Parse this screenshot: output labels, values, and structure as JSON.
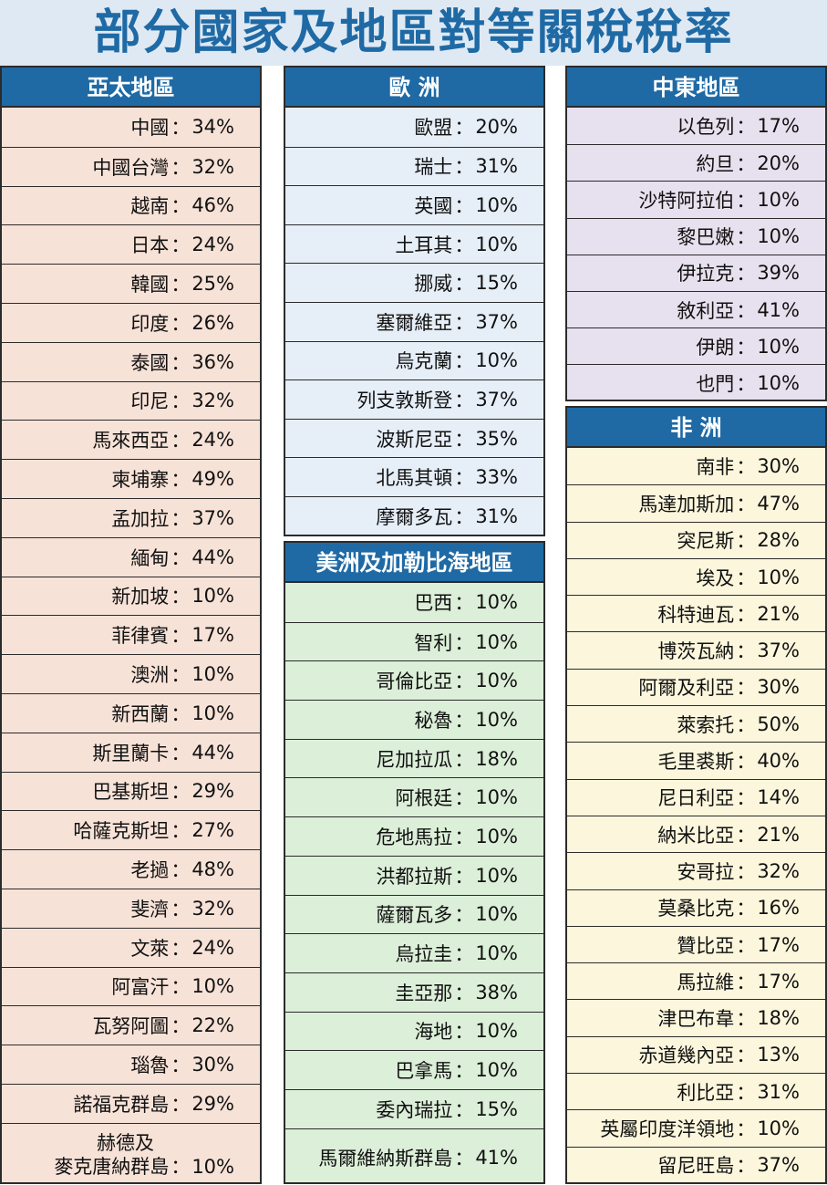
{
  "title": "部分國家及地區對等關稅稅率",
  "separator": "：",
  "sections": {
    "asia": {
      "header": "亞太地區",
      "rows": [
        {
          "name": "中國",
          "rate": "34%"
        },
        {
          "name": "中國台灣",
          "rate": "32%"
        },
        {
          "name": "越南",
          "rate": "46%"
        },
        {
          "name": "日本",
          "rate": "24%"
        },
        {
          "name": "韓國",
          "rate": "25%"
        },
        {
          "name": "印度",
          "rate": "26%"
        },
        {
          "name": "泰國",
          "rate": "36%"
        },
        {
          "name": "印尼",
          "rate": "32%"
        },
        {
          "name": "馬來西亞",
          "rate": "24%"
        },
        {
          "name": "柬埔寨",
          "rate": "49%"
        },
        {
          "name": "孟加拉",
          "rate": "37%"
        },
        {
          "name": "緬甸",
          "rate": "44%"
        },
        {
          "name": "新加坡",
          "rate": "10%"
        },
        {
          "name": "菲律賓",
          "rate": "17%"
        },
        {
          "name": "澳洲",
          "rate": "10%"
        },
        {
          "name": "新西蘭",
          "rate": "10%"
        },
        {
          "name": "斯里蘭卡",
          "rate": "44%"
        },
        {
          "name": "巴基斯坦",
          "rate": "29%"
        },
        {
          "name": "哈薩克斯坦",
          "rate": "27%"
        },
        {
          "name": "老撾",
          "rate": "48%"
        },
        {
          "name": "斐濟",
          "rate": "32%"
        },
        {
          "name": "文萊",
          "rate": "24%"
        },
        {
          "name": "阿富汗",
          "rate": "10%"
        },
        {
          "name": "瓦努阿圖",
          "rate": "22%"
        },
        {
          "name": "瑙魯",
          "rate": "30%"
        },
        {
          "name": "諾福克群島",
          "rate": "29%"
        },
        {
          "name_line1": "赫德及",
          "name": "麥克唐納群島",
          "rate": "10%"
        }
      ]
    },
    "europe": {
      "header": "歐 洲",
      "rows": [
        {
          "name": "歐盟",
          "rate": "20%"
        },
        {
          "name": "瑞士",
          "rate": "31%"
        },
        {
          "name": "英國",
          "rate": "10%"
        },
        {
          "name": "土耳其",
          "rate": "10%"
        },
        {
          "name": "挪威",
          "rate": "15%"
        },
        {
          "name": "塞爾維亞",
          "rate": "37%"
        },
        {
          "name": "烏克蘭",
          "rate": "10%"
        },
        {
          "name": "列支敦斯登",
          "rate": "37%"
        },
        {
          "name": "波斯尼亞",
          "rate": "35%"
        },
        {
          "name": "北馬其頓",
          "rate": "33%"
        },
        {
          "name": "摩爾多瓦",
          "rate": "31%"
        }
      ]
    },
    "america": {
      "header": "美洲及加勒比海地區",
      "rows": [
        {
          "name": "巴西",
          "rate": "10%"
        },
        {
          "name": "智利",
          "rate": "10%"
        },
        {
          "name": "哥倫比亞",
          "rate": "10%"
        },
        {
          "name": "秘魯",
          "rate": "10%"
        },
        {
          "name": "尼加拉瓜",
          "rate": "18%"
        },
        {
          "name": "阿根廷",
          "rate": "10%"
        },
        {
          "name": "危地馬拉",
          "rate": "10%"
        },
        {
          "name": "洪都拉斯",
          "rate": "10%"
        },
        {
          "name": "薩爾瓦多",
          "rate": "10%"
        },
        {
          "name": "烏拉圭",
          "rate": "10%"
        },
        {
          "name": "圭亞那",
          "rate": "38%"
        },
        {
          "name": "海地",
          "rate": "10%"
        },
        {
          "name": "巴拿馬",
          "rate": "10%"
        },
        {
          "name": "委內瑞拉",
          "rate": "15%"
        },
        {
          "name": "馬爾維納斯群島",
          "rate": "41%"
        }
      ]
    },
    "mideast": {
      "header": "中東地區",
      "rows": [
        {
          "name": "以色列",
          "rate": "17%"
        },
        {
          "name": "約旦",
          "rate": "20%"
        },
        {
          "name": "沙特阿拉伯",
          "rate": "10%"
        },
        {
          "name": "黎巴嫩",
          "rate": "10%"
        },
        {
          "name": "伊拉克",
          "rate": "39%"
        },
        {
          "name": "敘利亞",
          "rate": "41%"
        },
        {
          "name": "伊朗",
          "rate": "10%"
        },
        {
          "name": "也門",
          "rate": "10%"
        }
      ]
    },
    "africa": {
      "header": "非 洲",
      "rows": [
        {
          "name": "南非",
          "rate": "30%"
        },
        {
          "name": "馬達加斯加",
          "rate": "47%"
        },
        {
          "name": "突尼斯",
          "rate": "28%"
        },
        {
          "name": "埃及",
          "rate": "10%"
        },
        {
          "name": "科特迪瓦",
          "rate": "21%"
        },
        {
          "name": "博茨瓦納",
          "rate": "37%"
        },
        {
          "name": "阿爾及利亞",
          "rate": "30%"
        },
        {
          "name": "萊索托",
          "rate": "50%"
        },
        {
          "name": "毛里裘斯",
          "rate": "40%"
        },
        {
          "name": "尼日利亞",
          "rate": "14%"
        },
        {
          "name": "納米比亞",
          "rate": "21%"
        },
        {
          "name": "安哥拉",
          "rate": "32%"
        },
        {
          "name": "莫桑比克",
          "rate": "16%"
        },
        {
          "name": "贊比亞",
          "rate": "17%"
        },
        {
          "name": "馬拉維",
          "rate": "17%"
        },
        {
          "name": "津巴布韋",
          "rate": "18%"
        },
        {
          "name": "赤道幾內亞",
          "rate": "13%"
        },
        {
          "name": "利比亞",
          "rate": "31%"
        },
        {
          "name": "英屬印度洋領地",
          "rate": "10%"
        },
        {
          "name": "留尼旺島",
          "rate": "37%"
        }
      ]
    }
  }
}
